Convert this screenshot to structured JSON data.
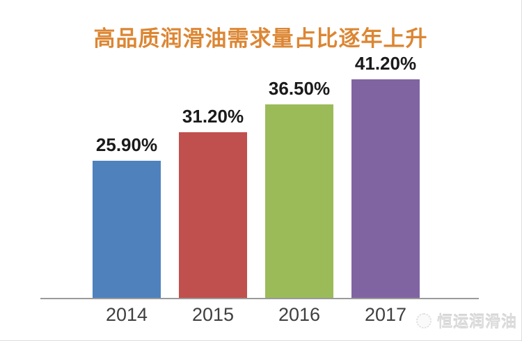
{
  "title": {
    "text": "高品质润滑油需求量占比逐年上升",
    "color": "#DC8633"
  },
  "watermark": {
    "icon": "logo-circle-icon",
    "text": "恒运润滑油"
  },
  "chart_data": {
    "type": "bar",
    "title": "高品质润滑油需求量占比逐年上升",
    "categories": [
      "2014",
      "2015",
      "2016",
      "2017"
    ],
    "values": [
      25.9,
      31.2,
      36.5,
      41.2
    ],
    "data_labels": [
      "25.90%",
      "31.20%",
      "36.50%",
      "41.20%"
    ],
    "colors": [
      "#4F81BD",
      "#C0504D",
      "#9BBB59",
      "#8064A2"
    ],
    "xlabel": "",
    "ylabel": "",
    "ylim": [
      0,
      41.2
    ],
    "grid": false,
    "legend": "none",
    "axis_line_color": "#9a9a9a"
  }
}
